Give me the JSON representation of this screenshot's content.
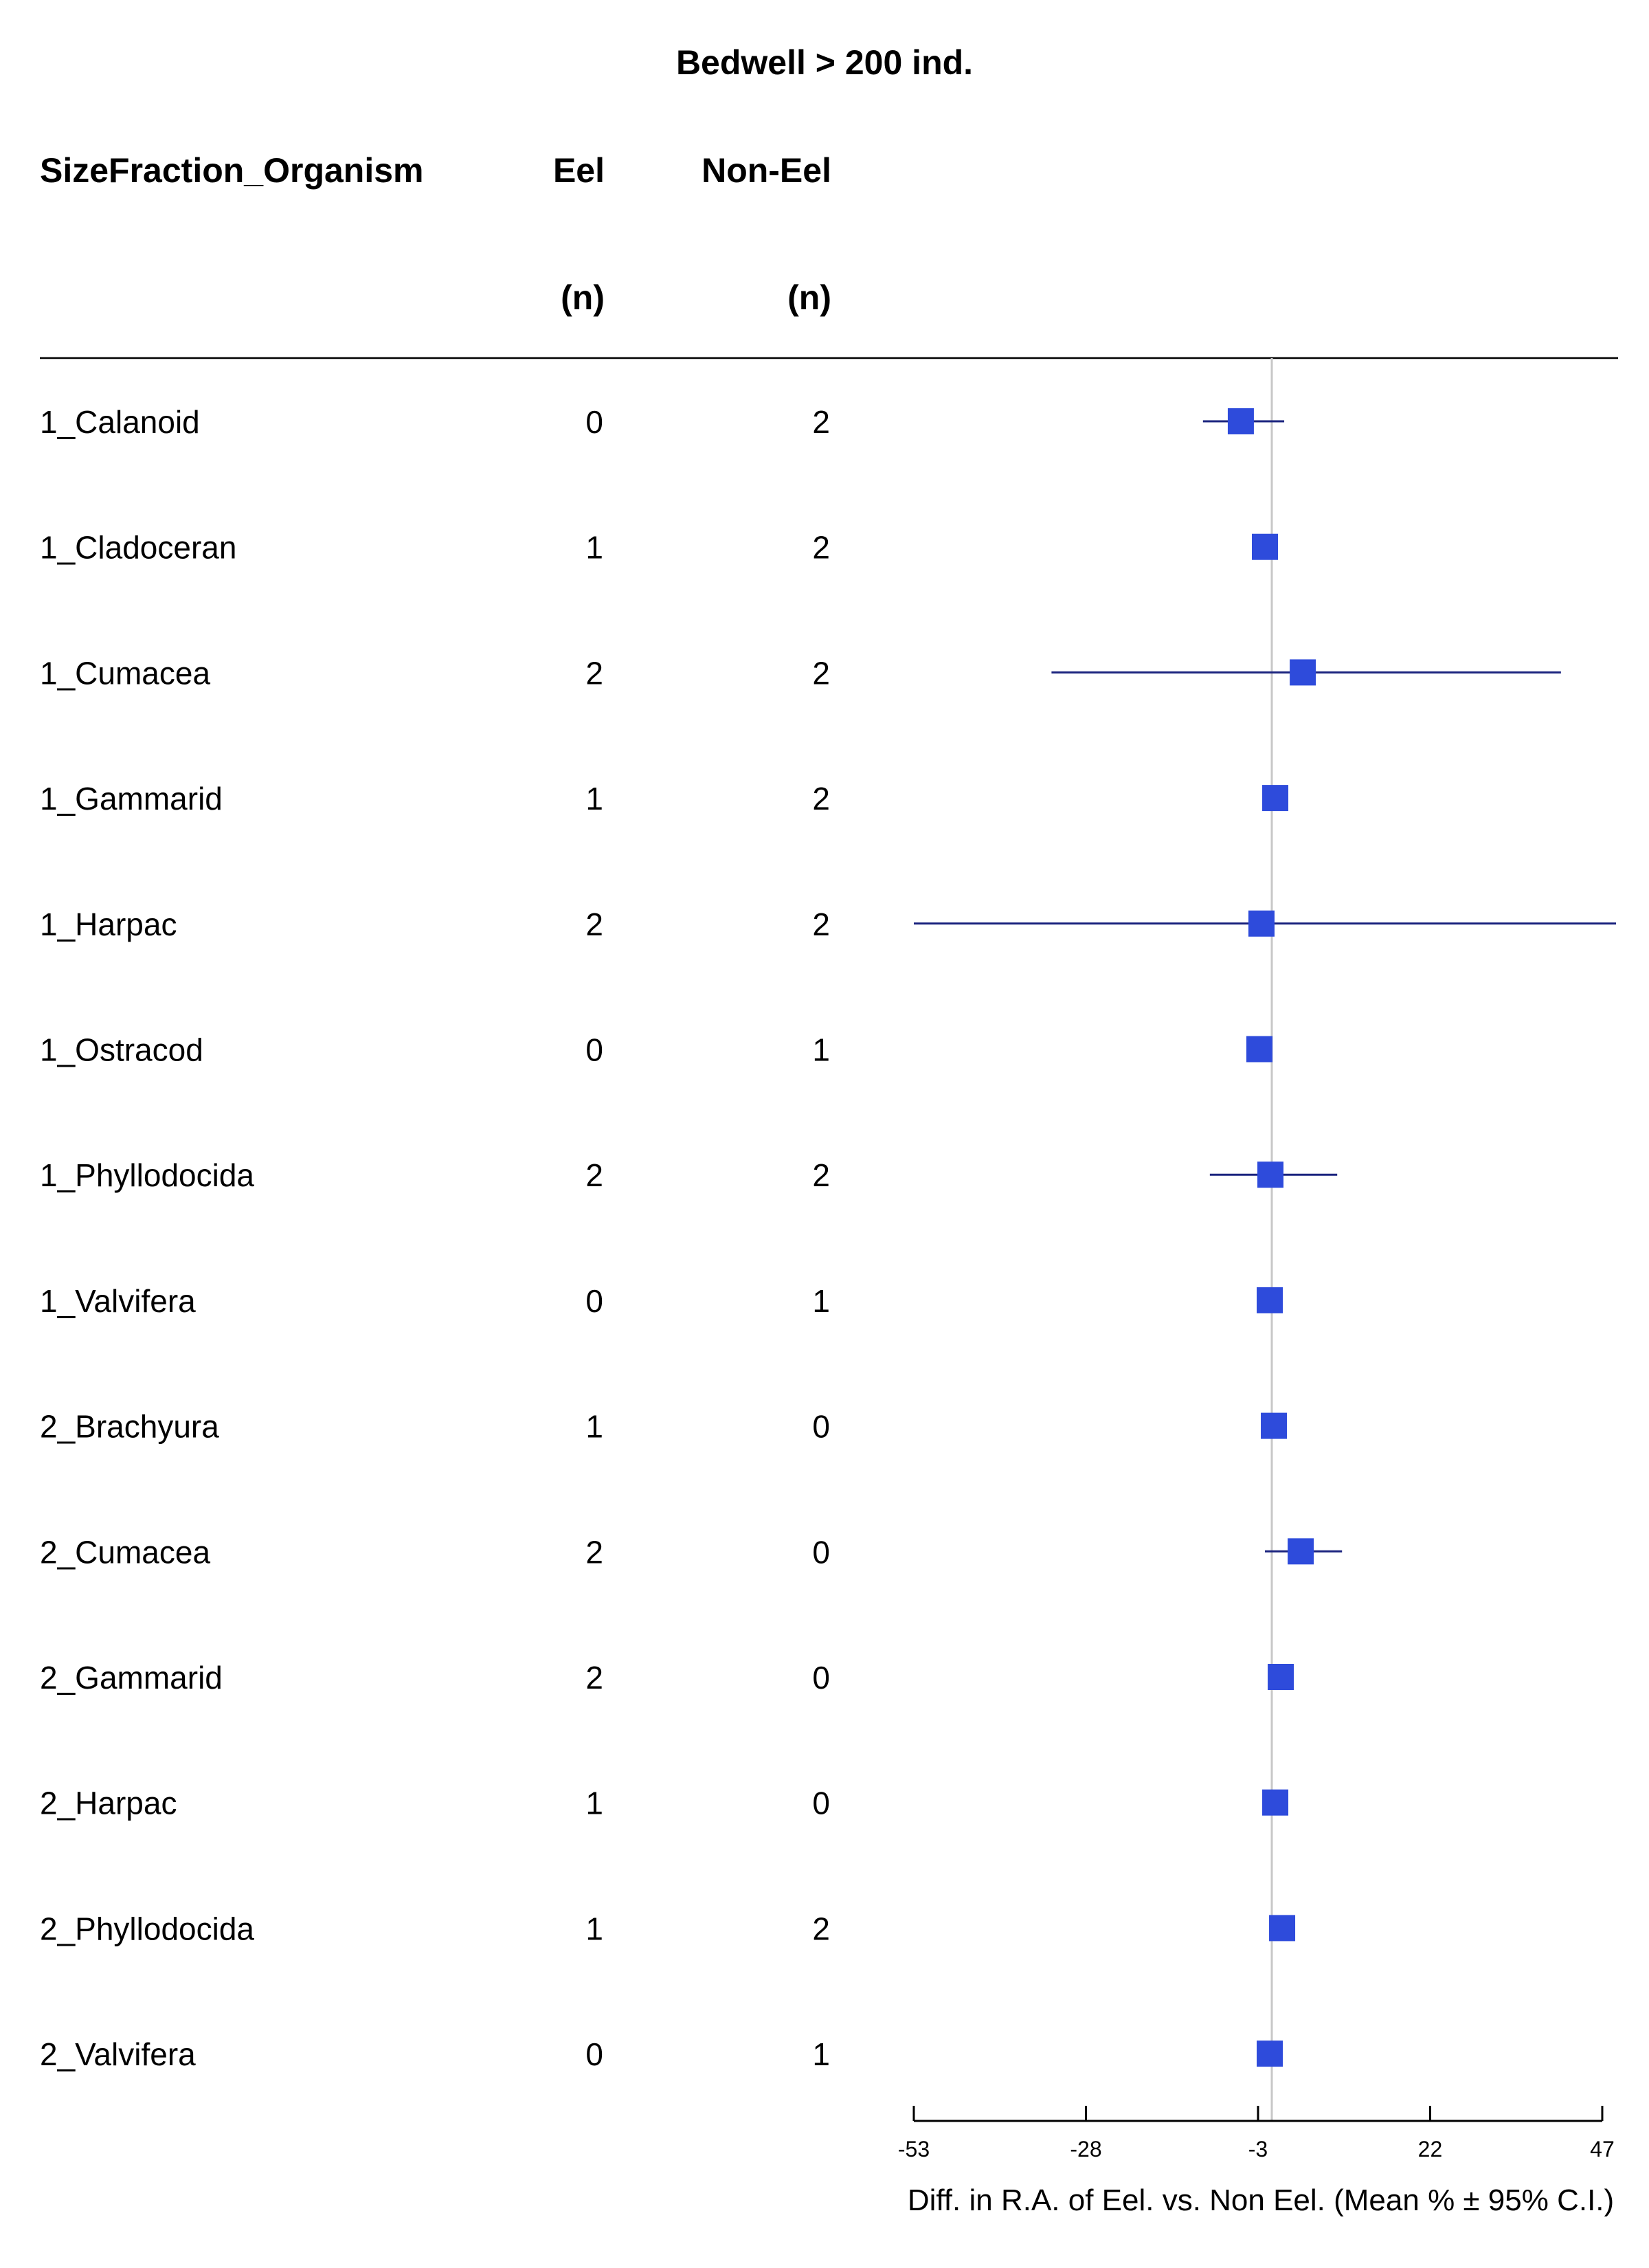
{
  "chart_data": {
    "type": "forest",
    "title": "Bedwell > 200 ind.",
    "columns": {
      "label_header": "SizeFraction_Organism",
      "eel_header": "Eel",
      "noneel_header": "Non-Eel",
      "n_label_eel": "(n)",
      "n_label_noneel": "(n)"
    },
    "xlabel": "Diff. in R.A. of Eel. vs. Non Eel. (Mean % ± 95% C.I.)",
    "xlim": [
      -53,
      49
    ],
    "xticks": [
      -53,
      -28,
      -3,
      22,
      47
    ],
    "reference_line": -1,
    "rows": [
      {
        "label": "1_Calanoid",
        "eel": "0",
        "noneel": "2",
        "mean": -5.5,
        "lo": -11.0,
        "hi": 0.8
      },
      {
        "label": "1_Cladoceran",
        "eel": "1",
        "noneel": "2",
        "mean": -2.0,
        "lo": -2.0,
        "hi": -2.0
      },
      {
        "label": "1_Cumacea",
        "eel": "2",
        "noneel": "2",
        "mean": 3.5,
        "lo": -33.0,
        "hi": 41.0
      },
      {
        "label": "1_Gammarid",
        "eel": "1",
        "noneel": "2",
        "mean": -0.5,
        "lo": -0.5,
        "hi": -0.5
      },
      {
        "label": "1_Harpac",
        "eel": "2",
        "noneel": "2",
        "mean": -2.5,
        "lo": -53.0,
        "hi": 49.0
      },
      {
        "label": "1_Ostracod",
        "eel": "0",
        "noneel": "1",
        "mean": -2.8,
        "lo": -2.8,
        "hi": -2.8
      },
      {
        "label": "1_Phyllodocida",
        "eel": "2",
        "noneel": "2",
        "mean": -1.2,
        "lo": -10.0,
        "hi": 8.5
      },
      {
        "label": "1_Valvifera",
        "eel": "0",
        "noneel": "1",
        "mean": -1.3,
        "lo": -1.3,
        "hi": -1.3
      },
      {
        "label": "2_Brachyura",
        "eel": "1",
        "noneel": "0",
        "mean": -0.7,
        "lo": -0.7,
        "hi": -0.7
      },
      {
        "label": "2_Cumacea",
        "eel": "2",
        "noneel": "0",
        "mean": 3.2,
        "lo": -2.0,
        "hi": 9.2
      },
      {
        "label": "2_Gammarid",
        "eel": "2",
        "noneel": "0",
        "mean": 0.3,
        "lo": 0.3,
        "hi": 0.3
      },
      {
        "label": "2_Harpac",
        "eel": "1",
        "noneel": "0",
        "mean": -0.5,
        "lo": -0.5,
        "hi": -0.5
      },
      {
        "label": "2_Phyllodocida",
        "eel": "1",
        "noneel": "2",
        "mean": 0.5,
        "lo": 0.5,
        "hi": 0.5
      },
      {
        "label": "2_Valvifera",
        "eel": "0",
        "noneel": "1",
        "mean": -1.3,
        "lo": -1.3,
        "hi": -1.3
      }
    ],
    "colors": {
      "marker": "#2e4bdb",
      "ci_line": "#1a237e",
      "reference_line": "#c8c8c8",
      "axis": "#000000",
      "text": "#000000"
    },
    "grid": false
  }
}
